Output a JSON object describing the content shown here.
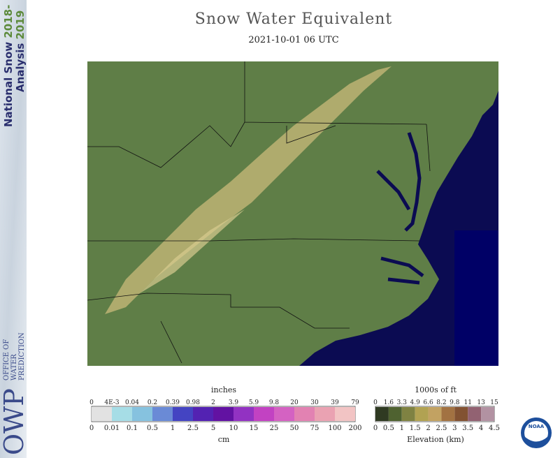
{
  "header": {
    "title": "Snow Water Equivalent",
    "subtitle": "2021-10-01 06 UTC"
  },
  "sidebar": {
    "program": [
      "National Snow",
      "2018-",
      "Analysis",
      "2019"
    ],
    "logo": {
      "abbr": "OWP",
      "lines": [
        "OFFICE OF",
        "WATER",
        "PREDICTION"
      ]
    }
  },
  "legend_swe": {
    "top_unit": "inches",
    "top_labels": [
      "0",
      "4E-3",
      "0.04",
      "0.2",
      "0.39",
      "0.98",
      "2",
      "3.9",
      "5.9",
      "9.8",
      "20",
      "30",
      "39",
      "79"
    ],
    "bottom_labels": [
      "0",
      "0.01",
      "0.1",
      "0.5",
      "1",
      "2.5",
      "5",
      "10",
      "15",
      "25",
      "50",
      "75",
      "100",
      "200"
    ],
    "bottom_unit": "cm"
  },
  "legend_elev": {
    "top_unit": "1000s of ft",
    "top_labels": [
      "0",
      "1.6",
      "3.3",
      "4.9",
      "6.6",
      "8.2",
      "9.8",
      "11",
      "13",
      "15"
    ],
    "bottom_labels": [
      "0",
      "0.5",
      "1",
      "1.5",
      "2",
      "2.5",
      "3",
      "3.5",
      "4",
      "4.5"
    ],
    "bottom_unit": "Elevation (km)"
  },
  "noaa_logo": "NOAA"
}
